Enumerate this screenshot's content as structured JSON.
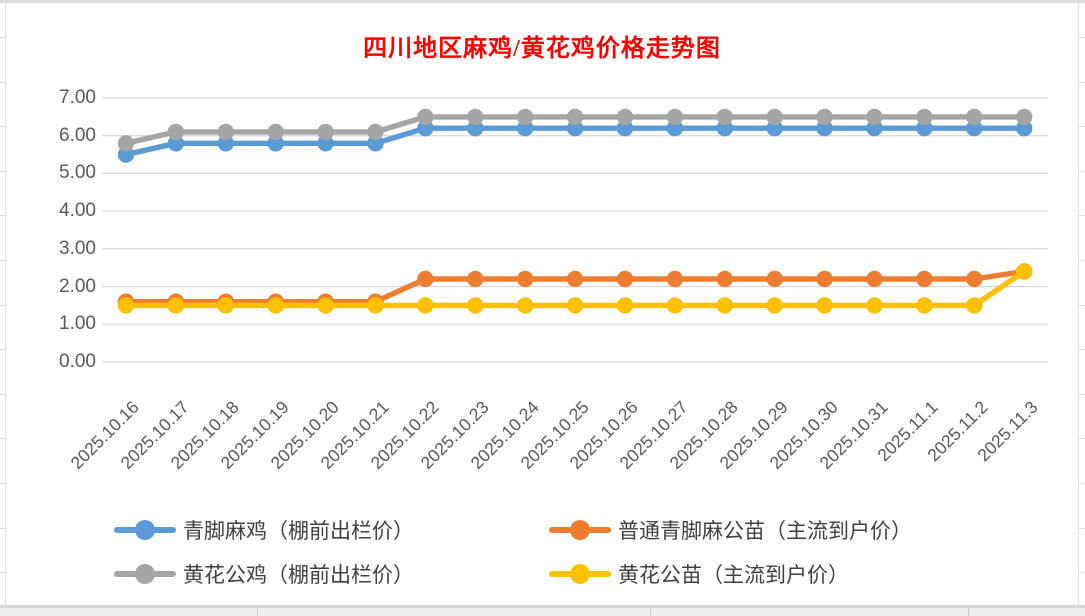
{
  "chart_data": {
    "type": "line",
    "title": "四川地区麻鸡/黄花鸡价格走势图",
    "title_color": "#FF0000",
    "x": [
      "2025.10.16",
      "2025.10.17",
      "2025.10.18",
      "2025.10.19",
      "2025.10.20",
      "2025.10.21",
      "2025.10.22",
      "2025.10.23",
      "2025.10.24",
      "2025.10.25",
      "2025.10.26",
      "2025.10.27",
      "2025.10.28",
      "2025.10.29",
      "2025.10.30",
      "2025.10.31",
      "2025.11.1",
      "2025.11.2",
      "2025.11.3"
    ],
    "ylim": [
      0,
      7
    ],
    "y_tick_step": 1,
    "y_tick_labels": [
      "0.00",
      "1.00",
      "2.00",
      "3.00",
      "4.00",
      "5.00",
      "6.00",
      "7.00"
    ],
    "grid": true,
    "legend_position": "bottom",
    "series": [
      {
        "name": "青脚麻鸡（棚前出栏价）",
        "color": "#5B9BD5",
        "values": [
          5.5,
          5.8,
          5.8,
          5.8,
          5.8,
          5.8,
          6.2,
          6.2,
          6.2,
          6.2,
          6.2,
          6.2,
          6.2,
          6.2,
          6.2,
          6.2,
          6.2,
          6.2,
          6.2
        ]
      },
      {
        "name": "普通青脚麻公苗（主流到户价）",
        "color": "#ED7D31",
        "values": [
          1.6,
          1.6,
          1.6,
          1.6,
          1.6,
          1.6,
          2.2,
          2.2,
          2.2,
          2.2,
          2.2,
          2.2,
          2.2,
          2.2,
          2.2,
          2.2,
          2.2,
          2.2,
          2.4
        ]
      },
      {
        "name": "黄花公鸡（棚前出栏价）",
        "color": "#A5A5A5",
        "values": [
          5.8,
          6.1,
          6.1,
          6.1,
          6.1,
          6.1,
          6.5,
          6.5,
          6.5,
          6.5,
          6.5,
          6.5,
          6.5,
          6.5,
          6.5,
          6.5,
          6.5,
          6.5,
          6.5
        ]
      },
      {
        "name": "黄花公苗（主流到户价）",
        "color": "#FFC000",
        "values": [
          1.5,
          1.5,
          1.5,
          1.5,
          1.5,
          1.5,
          1.5,
          1.5,
          1.5,
          1.5,
          1.5,
          1.5,
          1.5,
          1.5,
          1.5,
          1.5,
          1.5,
          1.5,
          2.4
        ]
      }
    ],
    "gridline_color": "#D9D9D9",
    "axis_text_color": "#595959",
    "legend_text_color": "#404040"
  }
}
